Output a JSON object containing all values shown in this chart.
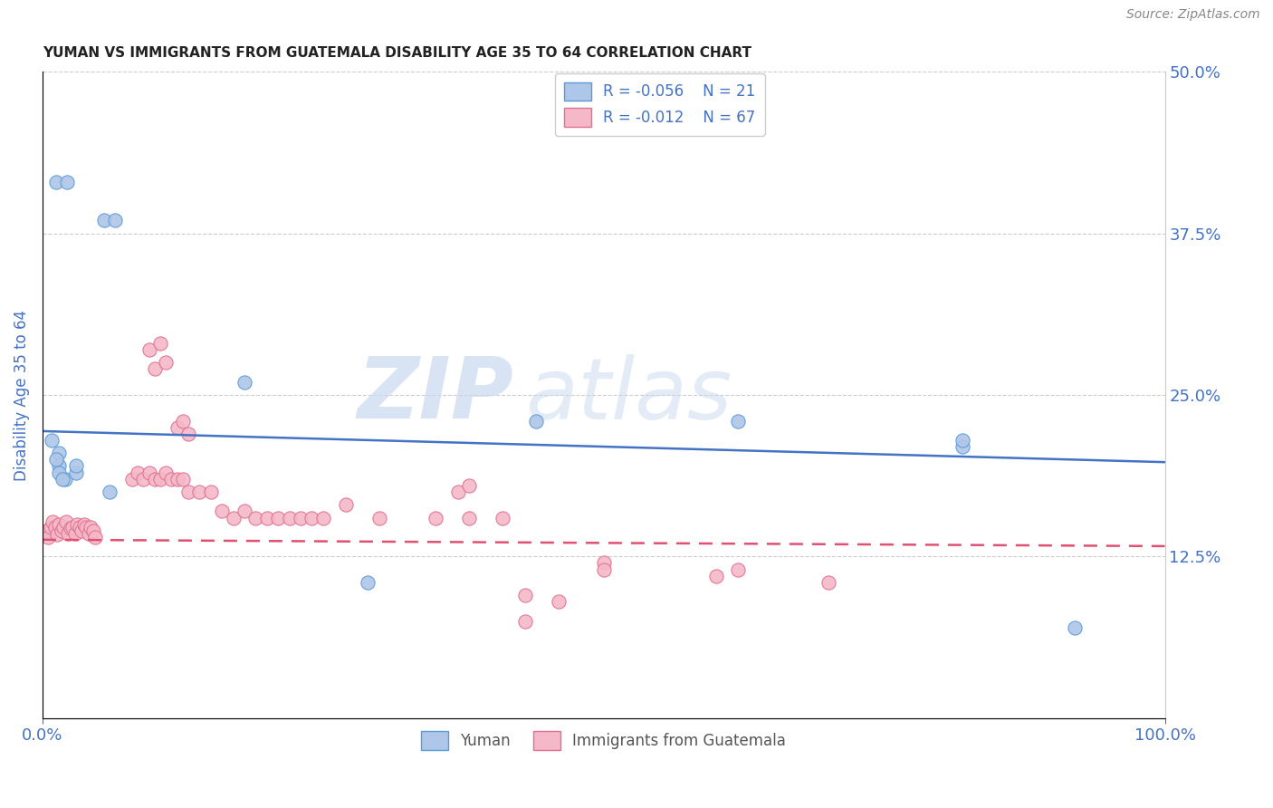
{
  "title": "YUMAN VS IMMIGRANTS FROM GUATEMALA DISABILITY AGE 35 TO 64 CORRELATION CHART",
  "source": "Source: ZipAtlas.com",
  "ylabel": "Disability Age 35 to 64",
  "xlabel": "",
  "watermark_zip": "ZIP",
  "watermark_atlas": "atlas",
  "xlim": [
    0.0,
    1.0
  ],
  "ylim": [
    0.0,
    0.5
  ],
  "ytick_vals": [
    0.0,
    0.125,
    0.25,
    0.375,
    0.5
  ],
  "ytick_labels": [
    "",
    "12.5%",
    "25.0%",
    "37.5%",
    "50.0%"
  ],
  "xticks": [
    0.0,
    1.0
  ],
  "xtick_labels": [
    "0.0%",
    "100.0%"
  ],
  "blue_R": -0.056,
  "blue_N": 21,
  "pink_R": -0.012,
  "pink_N": 67,
  "blue_label": "Yuman",
  "pink_label": "Immigrants from Guatemala",
  "blue_fill": "#aec6e8",
  "blue_edge": "#5b9bd5",
  "pink_fill": "#f4b8c8",
  "pink_edge": "#e07090",
  "blue_line_color": "#4472c4",
  "pink_line_color": "#e05070",
  "blue_scatter": [
    [
      0.012,
      0.415
    ],
    [
      0.022,
      0.415
    ],
    [
      0.055,
      0.385
    ],
    [
      0.065,
      0.385
    ],
    [
      0.008,
      0.215
    ],
    [
      0.015,
      0.205
    ],
    [
      0.015,
      0.195
    ],
    [
      0.02,
      0.185
    ],
    [
      0.03,
      0.19
    ],
    [
      0.012,
      0.2
    ],
    [
      0.03,
      0.195
    ],
    [
      0.18,
      0.26
    ],
    [
      0.44,
      0.23
    ],
    [
      0.62,
      0.23
    ],
    [
      0.82,
      0.21
    ],
    [
      0.82,
      0.215
    ],
    [
      0.015,
      0.19
    ],
    [
      0.018,
      0.185
    ],
    [
      0.06,
      0.175
    ],
    [
      0.29,
      0.105
    ],
    [
      0.92,
      0.07
    ]
  ],
  "pink_scatter": [
    [
      0.003,
      0.145
    ],
    [
      0.005,
      0.14
    ],
    [
      0.007,
      0.148
    ],
    [
      0.009,
      0.152
    ],
    [
      0.011,
      0.148
    ],
    [
      0.013,
      0.142
    ],
    [
      0.015,
      0.15
    ],
    [
      0.017,
      0.145
    ],
    [
      0.019,
      0.148
    ],
    [
      0.021,
      0.152
    ],
    [
      0.023,
      0.143
    ],
    [
      0.025,
      0.147
    ],
    [
      0.027,
      0.148
    ],
    [
      0.029,
      0.143
    ],
    [
      0.031,
      0.15
    ],
    [
      0.033,
      0.148
    ],
    [
      0.035,
      0.145
    ],
    [
      0.037,
      0.15
    ],
    [
      0.039,
      0.148
    ],
    [
      0.041,
      0.143
    ],
    [
      0.043,
      0.148
    ],
    [
      0.045,
      0.145
    ],
    [
      0.047,
      0.14
    ],
    [
      0.095,
      0.285
    ],
    [
      0.1,
      0.27
    ],
    [
      0.105,
      0.29
    ],
    [
      0.11,
      0.275
    ],
    [
      0.12,
      0.225
    ],
    [
      0.125,
      0.23
    ],
    [
      0.13,
      0.22
    ],
    [
      0.08,
      0.185
    ],
    [
      0.085,
      0.19
    ],
    [
      0.09,
      0.185
    ],
    [
      0.095,
      0.19
    ],
    [
      0.1,
      0.185
    ],
    [
      0.105,
      0.185
    ],
    [
      0.11,
      0.19
    ],
    [
      0.115,
      0.185
    ],
    [
      0.12,
      0.185
    ],
    [
      0.125,
      0.185
    ],
    [
      0.13,
      0.175
    ],
    [
      0.14,
      0.175
    ],
    [
      0.15,
      0.175
    ],
    [
      0.16,
      0.16
    ],
    [
      0.17,
      0.155
    ],
    [
      0.18,
      0.16
    ],
    [
      0.19,
      0.155
    ],
    [
      0.2,
      0.155
    ],
    [
      0.21,
      0.155
    ],
    [
      0.22,
      0.155
    ],
    [
      0.23,
      0.155
    ],
    [
      0.24,
      0.155
    ],
    [
      0.25,
      0.155
    ],
    [
      0.27,
      0.165
    ],
    [
      0.3,
      0.155
    ],
    [
      0.35,
      0.155
    ],
    [
      0.37,
      0.175
    ],
    [
      0.38,
      0.155
    ],
    [
      0.41,
      0.155
    ],
    [
      0.43,
      0.095
    ],
    [
      0.46,
      0.09
    ],
    [
      0.5,
      0.12
    ],
    [
      0.5,
      0.115
    ],
    [
      0.43,
      0.075
    ],
    [
      0.6,
      0.11
    ],
    [
      0.62,
      0.115
    ],
    [
      0.7,
      0.105
    ],
    [
      0.38,
      0.18
    ]
  ],
  "blue_trend_x": [
    0.0,
    1.0
  ],
  "blue_trend_y": [
    0.222,
    0.198
  ],
  "pink_trend_x": [
    0.0,
    1.0
  ],
  "pink_trend_y": [
    0.138,
    0.133
  ],
  "background_color": "#ffffff",
  "grid_color": "#cccccc",
  "title_color": "#222222",
  "axis_label_color": "#4472c4",
  "tick_label_color": "#4472c4",
  "legend_text_color": "#4472c4"
}
